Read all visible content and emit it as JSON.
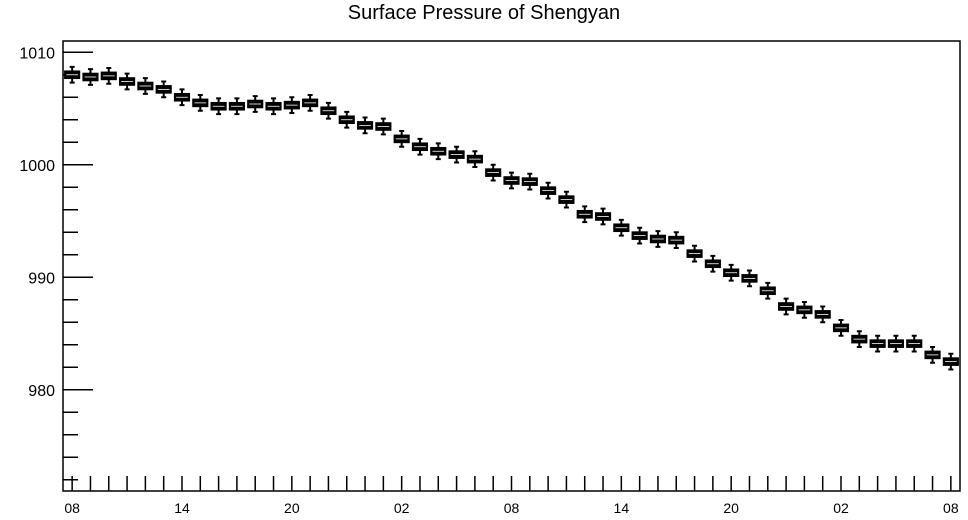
{
  "chart_data": {
    "type": "boxplot",
    "title": "Surface Pressure of Shengyan",
    "xlabel": "",
    "ylabel": "",
    "ylim": [
      971,
      1011
    ],
    "y_ticks": [
      980,
      990,
      1000,
      1010
    ],
    "x_tick_labels": [
      "08",
      "14",
      "20",
      "02",
      "08",
      "14",
      "20",
      "02",
      "08"
    ],
    "grid": false,
    "values": [
      1008.0,
      1007.8,
      1007.9,
      1007.4,
      1007.0,
      1006.7,
      1006.0,
      1005.5,
      1005.2,
      1005.2,
      1005.4,
      1005.2,
      1005.3,
      1005.5,
      1004.8,
      1004.0,
      1003.5,
      1003.4,
      1002.3,
      1001.6,
      1001.2,
      1000.9,
      1000.5,
      999.3,
      998.6,
      998.5,
      997.7,
      996.9,
      995.6,
      995.4,
      994.4,
      993.7,
      993.4,
      993.3,
      992.1,
      991.2,
      990.4,
      989.9,
      988.8,
      987.4,
      987.1,
      986.7,
      985.5,
      984.5,
      984.1,
      984.1,
      984.1,
      983.1,
      982.5
    ],
    "spread": 0.7
  }
}
